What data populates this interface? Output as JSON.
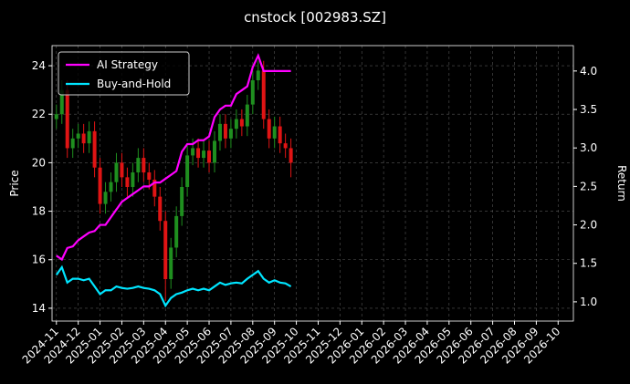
{
  "chart_data": {
    "type": "candlestick",
    "title": "cnstock [002983.SZ]",
    "ylabel": "Price",
    "y2label": "Return",
    "xlim": [
      -0.2,
      23.7
    ],
    "xticks": [
      {
        "value": 0,
        "label": "2024-11"
      },
      {
        "value": 1,
        "label": "2024-12"
      },
      {
        "value": 2,
        "label": "2025-01"
      },
      {
        "value": 3,
        "label": "2025-02"
      },
      {
        "value": 4,
        "label": "2025-03"
      },
      {
        "value": 5,
        "label": "2025-04"
      },
      {
        "value": 6,
        "label": "2025-05"
      },
      {
        "value": 7,
        "label": "2025-06"
      },
      {
        "value": 8,
        "label": "2025-07"
      },
      {
        "value": 9,
        "label": "2025-08"
      },
      {
        "value": 10,
        "label": "2025-09"
      },
      {
        "value": 11,
        "label": "2025-10"
      },
      {
        "value": 12,
        "label": "2025-11"
      },
      {
        "value": 13,
        "label": "2025-12"
      },
      {
        "value": 14,
        "label": "2026-01"
      },
      {
        "value": 15,
        "label": "2026-02"
      },
      {
        "value": 16,
        "label": "2026-03"
      },
      {
        "value": 17,
        "label": "2026-04"
      },
      {
        "value": 18,
        "label": "2026-05"
      },
      {
        "value": 19,
        "label": "2026-06"
      },
      {
        "value": 20,
        "label": "2026-07"
      },
      {
        "value": 21,
        "label": "2026-08"
      },
      {
        "value": 22,
        "label": "2026-09"
      },
      {
        "value": 23,
        "label": "2026-10"
      }
    ],
    "ylim": [
      13.47,
      24.83
    ],
    "yticks": [
      14,
      16,
      18,
      20,
      22,
      24
    ],
    "y2lim": [
      0.75,
      4.33
    ],
    "y2ticks": [
      {
        "value": 1,
        "label": "1.0"
      },
      1.5,
      {
        "value": 2,
        "label": "2.0"
      },
      2.5,
      {
        "value": 3,
        "label": "3.0"
      },
      3.5,
      {
        "value": 4,
        "label": "4.0"
      }
    ],
    "grid": true,
    "legend": "upper left",
    "up_color": "#1f8f1f",
    "down_color": "#e01414",
    "x": [
      0,
      0.25,
      0.5,
      0.75,
      1,
      1.25,
      1.5,
      1.75,
      2,
      2.25,
      2.5,
      2.75,
      3,
      3.25,
      3.5,
      3.75,
      4,
      4.25,
      4.5,
      4.75,
      5,
      5.25,
      5.5,
      5.75,
      6,
      6.25,
      6.5,
      6.75,
      7,
      7.25,
      7.5,
      7.75,
      8,
      8.25,
      8.5,
      8.75,
      9,
      9.25,
      9.5,
      9.75,
      10,
      10.25,
      10.5,
      10.75
    ],
    "open": [
      21.8,
      22.0,
      23.0,
      20.6,
      21.0,
      21.2,
      20.8,
      21.3,
      19.8,
      18.3,
      18.8,
      19.2,
      20.0,
      19.4,
      19.0,
      19.6,
      20.2,
      19.6,
      19.3,
      18.6,
      17.6,
      15.2,
      16.5,
      17.8,
      19.0,
      20.3,
      20.6,
      20.2,
      20.5,
      20.0,
      20.9,
      21.6,
      21.0,
      21.4,
      21.8,
      21.5,
      22.4,
      23.4,
      23.8,
      21.8,
      21.0,
      21.5,
      20.8,
      20.6
    ],
    "high": [
      22.4,
      23.4,
      23.4,
      21.4,
      21.6,
      21.6,
      21.7,
      21.7,
      20.2,
      19.2,
      19.6,
      20.4,
      20.4,
      19.8,
      20.0,
      20.6,
      20.6,
      20.0,
      19.7,
      19.0,
      18.0,
      16.9,
      18.2,
      19.4,
      20.7,
      21.0,
      21.0,
      20.9,
      20.9,
      21.3,
      22.0,
      22.0,
      21.8,
      22.2,
      22.2,
      22.8,
      23.8,
      24.2,
      24.2,
      22.2,
      21.9,
      21.9,
      21.2,
      21.0
    ],
    "low": [
      21.4,
      21.6,
      20.2,
      20.2,
      20.6,
      20.4,
      20.4,
      19.4,
      17.9,
      17.9,
      18.4,
      18.8,
      19.0,
      18.6,
      18.6,
      19.2,
      19.2,
      18.9,
      18.2,
      17.2,
      14.3,
      14.8,
      16.1,
      17.4,
      18.6,
      19.9,
      19.8,
      19.8,
      19.6,
      19.6,
      20.5,
      20.6,
      20.6,
      21.0,
      21.1,
      21.1,
      22.0,
      23.0,
      21.4,
      20.6,
      20.6,
      20.4,
      20.2,
      19.4
    ],
    "close": [
      22.0,
      23.0,
      20.6,
      21.0,
      21.2,
      20.8,
      21.3,
      19.8,
      18.3,
      18.8,
      19.2,
      20.0,
      19.4,
      19.0,
      19.6,
      20.2,
      19.6,
      19.3,
      18.6,
      17.6,
      15.2,
      16.5,
      17.8,
      19.0,
      20.3,
      20.6,
      20.2,
      20.5,
      20.0,
      20.9,
      21.6,
      21.0,
      21.4,
      21.8,
      21.5,
      22.4,
      23.4,
      23.8,
      21.8,
      21.0,
      21.5,
      20.8,
      20.6,
      20.0
    ],
    "series": [
      {
        "name": "AI Strategy",
        "color": "#ff00ff",
        "axis": "y2",
        "values": [
          1.6,
          1.55,
          1.7,
          1.72,
          1.8,
          1.85,
          1.9,
          1.92,
          2.0,
          2.0,
          2.1,
          2.2,
          2.3,
          2.35,
          2.4,
          2.45,
          2.5,
          2.5,
          2.55,
          2.55,
          2.6,
          2.65,
          2.7,
          2.95,
          3.05,
          3.05,
          3.1,
          3.1,
          3.15,
          3.4,
          3.5,
          3.55,
          3.55,
          3.7,
          3.75,
          3.8,
          4.05,
          4.2,
          4.0,
          4.0,
          4.0,
          4.0,
          4.0,
          4.0
        ]
      },
      {
        "name": "Buy-and-Hold",
        "color": "#00e5ff",
        "axis": "y2",
        "values": [
          1.35,
          1.45,
          1.25,
          1.3,
          1.3,
          1.28,
          1.3,
          1.2,
          1.1,
          1.15,
          1.15,
          1.2,
          1.18,
          1.17,
          1.18,
          1.2,
          1.18,
          1.17,
          1.15,
          1.1,
          0.95,
          1.05,
          1.1,
          1.12,
          1.15,
          1.17,
          1.15,
          1.17,
          1.15,
          1.2,
          1.25,
          1.22,
          1.24,
          1.25,
          1.24,
          1.3,
          1.35,
          1.4,
          1.3,
          1.25,
          1.28,
          1.25,
          1.24,
          1.2
        ]
      }
    ]
  }
}
